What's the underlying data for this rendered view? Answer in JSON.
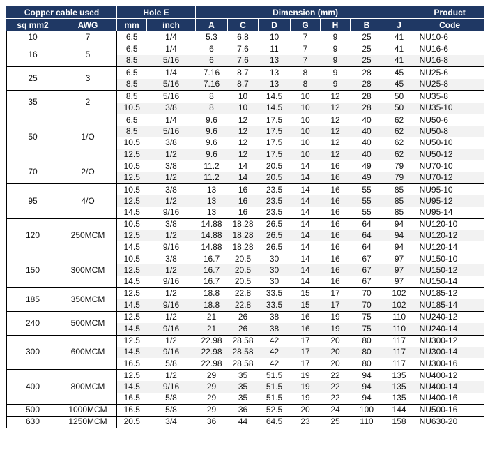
{
  "headers": {
    "copper_cable_used": "Copper cable used",
    "hole_e": "Hole E",
    "dimension": "Dimension (mm)",
    "product": "Product",
    "code": "Code",
    "sq_mm2": "sq mm2",
    "awg": "AWG",
    "mm": "mm",
    "inch": "inch",
    "dims": [
      "A",
      "C",
      "D",
      "G",
      "H",
      "B",
      "J"
    ]
  },
  "groups": [
    {
      "sq": "10",
      "awg": "7",
      "rows": [
        [
          "6.5",
          "1/4",
          "5.3",
          "6.8",
          "10",
          "7",
          "9",
          "25",
          "41",
          "NU10-6"
        ]
      ]
    },
    {
      "sq": "16",
      "awg": "5",
      "rows": [
        [
          "6.5",
          "1/4",
          "6",
          "7.6",
          "11",
          "7",
          "9",
          "25",
          "41",
          "NU16-6"
        ],
        [
          "8.5",
          "5/16",
          "6",
          "7.6",
          "13",
          "7",
          "9",
          "25",
          "41",
          "NU16-8"
        ]
      ]
    },
    {
      "sq": "25",
      "awg": "3",
      "rows": [
        [
          "6.5",
          "1/4",
          "7.16",
          "8.7",
          "13",
          "8",
          "9",
          "28",
          "45",
          "NU25-6"
        ],
        [
          "8.5",
          "5/16",
          "7.16",
          "8.7",
          "13",
          "8",
          "9",
          "28",
          "45",
          "NU25-8"
        ]
      ]
    },
    {
      "sq": "35",
      "awg": "2",
      "rows": [
        [
          "8.5",
          "5/16",
          "8",
          "10",
          "14.5",
          "10",
          "12",
          "28",
          "50",
          "NU35-8"
        ],
        [
          "10.5",
          "3/8",
          "8",
          "10",
          "14.5",
          "10",
          "12",
          "28",
          "50",
          "NU35-10"
        ]
      ]
    },
    {
      "sq": "50",
      "awg": "1/O",
      "rows": [
        [
          "6.5",
          "1/4",
          "9.6",
          "12",
          "17.5",
          "10",
          "12",
          "40",
          "62",
          "NU50-6"
        ],
        [
          "8.5",
          "5/16",
          "9.6",
          "12",
          "17.5",
          "10",
          "12",
          "40",
          "62",
          "NU50-8"
        ],
        [
          "10.5",
          "3/8",
          "9.6",
          "12",
          "17.5",
          "10",
          "12",
          "40",
          "62",
          "NU50-10"
        ],
        [
          "12.5",
          "1/2",
          "9.6",
          "12",
          "17.5",
          "10",
          "12",
          "40",
          "62",
          "NU50-12"
        ]
      ]
    },
    {
      "sq": "70",
      "awg": "2/O",
      "rows": [
        [
          "10.5",
          "3/8",
          "11.2",
          "14",
          "20.5",
          "14",
          "16",
          "49",
          "79",
          "NU70-10"
        ],
        [
          "12.5",
          "1/2",
          "11.2",
          "14",
          "20.5",
          "14",
          "16",
          "49",
          "79",
          "NU70-12"
        ]
      ]
    },
    {
      "sq": "95",
      "awg": "4/O",
      "rows": [
        [
          "10.5",
          "3/8",
          "13",
          "16",
          "23.5",
          "14",
          "16",
          "55",
          "85",
          "NU95-10"
        ],
        [
          "12.5",
          "1/2",
          "13",
          "16",
          "23.5",
          "14",
          "16",
          "55",
          "85",
          "NU95-12"
        ],
        [
          "14.5",
          "9/16",
          "13",
          "16",
          "23.5",
          "14",
          "16",
          "55",
          "85",
          "NU95-14"
        ]
      ]
    },
    {
      "sq": "120",
      "awg": "250MCM",
      "rows": [
        [
          "10.5",
          "3/8",
          "14.88",
          "18.28",
          "26.5",
          "14",
          "16",
          "64",
          "94",
          "NU120-10"
        ],
        [
          "12.5",
          "1/2",
          "14.88",
          "18.28",
          "26.5",
          "14",
          "16",
          "64",
          "94",
          "NU120-12"
        ],
        [
          "14.5",
          "9/16",
          "14.88",
          "18.28",
          "26.5",
          "14",
          "16",
          "64",
          "94",
          "NU120-14"
        ]
      ]
    },
    {
      "sq": "150",
      "awg": "300MCM",
      "rows": [
        [
          "10.5",
          "3/8",
          "16.7",
          "20.5",
          "30",
          "14",
          "16",
          "67",
          "97",
          "NU150-10"
        ],
        [
          "12.5",
          "1/2",
          "16.7",
          "20.5",
          "30",
          "14",
          "16",
          "67",
          "97",
          "NU150-12"
        ],
        [
          "14.5",
          "9/16",
          "16.7",
          "20.5",
          "30",
          "14",
          "16",
          "67",
          "97",
          "NU150-14"
        ]
      ]
    },
    {
      "sq": "185",
      "awg": "350MCM",
      "rows": [
        [
          "12.5",
          "1/2",
          "18.8",
          "22.8",
          "33.5",
          "15",
          "17",
          "70",
          "102",
          "NU185-12"
        ],
        [
          "14.5",
          "9/16",
          "18.8",
          "22.8",
          "33.5",
          "15",
          "17",
          "70",
          "102",
          "NU185-14"
        ]
      ]
    },
    {
      "sq": "240",
      "awg": "500MCM",
      "rows": [
        [
          "12.5",
          "1/2",
          "21",
          "26",
          "38",
          "16",
          "19",
          "75",
          "110",
          "NU240-12"
        ],
        [
          "14.5",
          "9/16",
          "21",
          "26",
          "38",
          "16",
          "19",
          "75",
          "110",
          "NU240-14"
        ]
      ]
    },
    {
      "sq": "300",
      "awg": "600MCM",
      "rows": [
        [
          "12.5",
          "1/2",
          "22.98",
          "28.58",
          "42",
          "17",
          "20",
          "80",
          "117",
          "NU300-12"
        ],
        [
          "14.5",
          "9/16",
          "22.98",
          "28.58",
          "42",
          "17",
          "20",
          "80",
          "117",
          "NU300-14"
        ],
        [
          "16.5",
          "5/8",
          "22.98",
          "28.58",
          "42",
          "17",
          "20",
          "80",
          "117",
          "NU300-16"
        ]
      ]
    },
    {
      "sq": "400",
      "awg": "800MCM",
      "rows": [
        [
          "12.5",
          "1/2",
          "29",
          "35",
          "51.5",
          "19",
          "22",
          "94",
          "135",
          "NU400-12"
        ],
        [
          "14.5",
          "9/16",
          "29",
          "35",
          "51.5",
          "19",
          "22",
          "94",
          "135",
          "NU400-14"
        ],
        [
          "16.5",
          "5/8",
          "29",
          "35",
          "51.5",
          "19",
          "22",
          "94",
          "135",
          "NU400-16"
        ]
      ]
    },
    {
      "sq": "500",
      "awg": "1000MCM",
      "rows": [
        [
          "16.5",
          "5/8",
          "29",
          "36",
          "52.5",
          "20",
          "24",
          "100",
          "144",
          "NU500-16"
        ]
      ]
    },
    {
      "sq": "630",
      "awg": "1250MCM",
      "rows": [
        [
          "20.5",
          "3/4",
          "36",
          "44",
          "64.5",
          "23",
          "25",
          "110",
          "158",
          "NU630-20"
        ]
      ]
    }
  ],
  "colors": {
    "header_bg": "#1f3864",
    "row_shade": "#f2f2f2"
  }
}
